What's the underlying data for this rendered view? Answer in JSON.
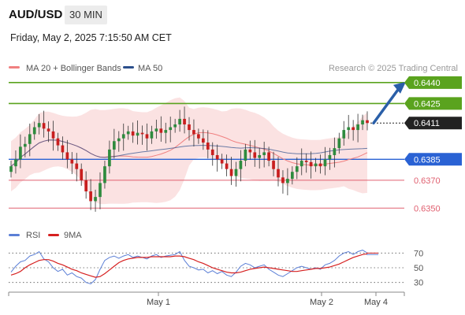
{
  "header": {
    "symbol": "AUD/USD",
    "timeframe": "30 MIN",
    "datetime": "Friday, May 2, 2025 7:15:50 AM CET"
  },
  "legend": {
    "ma20_label": "MA 20 + Bollinger Bands",
    "ma50_label": "MA 50",
    "ma20_color": "#f08080",
    "ma50_color": "#2c4f8c",
    "watermark": "Research © 2025 Trading Central"
  },
  "colors": {
    "up": "#2e8b3e",
    "down": "#c81e1e",
    "resistance": "#5aa31e",
    "support": "#e06070",
    "pivot": "#2a62d4",
    "current": "#222222",
    "arrow": "#2a5fa8",
    "band": "#f7caca",
    "rsi": "#5b7fd6",
    "rsi_ma": "#d62020"
  },
  "chart_data": [
    {
      "type": "candlestick",
      "pair": "AUD/USD",
      "ylim": [
        0.634,
        0.6445
      ],
      "levels": [
        {
          "value": "0.6440",
          "kind": "target"
        },
        {
          "value": "0.6425",
          "kind": "resistance"
        },
        {
          "value": "0.6411",
          "kind": "current"
        },
        {
          "value": "0.6385",
          "kind": "pivot"
        },
        {
          "value": "0.6370",
          "kind": "support"
        },
        {
          "value": "0.6350",
          "kind": "support"
        }
      ],
      "x_ticks": [
        "May 1",
        "May 2",
        "May 4"
      ],
      "close": [
        0.638,
        0.6385,
        0.6394,
        0.6396,
        0.6403,
        0.6408,
        0.6411,
        0.6407,
        0.6405,
        0.64,
        0.6395,
        0.639,
        0.6385,
        0.6382,
        0.6378,
        0.637,
        0.6362,
        0.6355,
        0.6358,
        0.6368,
        0.638,
        0.6392,
        0.6398,
        0.64,
        0.6403,
        0.6405,
        0.6402,
        0.6404,
        0.6403,
        0.64,
        0.6405,
        0.6407,
        0.6404,
        0.6406,
        0.6408,
        0.641,
        0.6414,
        0.641,
        0.6406,
        0.6403,
        0.64,
        0.6397,
        0.6392,
        0.6388,
        0.6385,
        0.6382,
        0.6378,
        0.6373,
        0.6378,
        0.6384,
        0.6392,
        0.639,
        0.6386,
        0.6388,
        0.639,
        0.6384,
        0.6378,
        0.6372,
        0.6368,
        0.6371,
        0.6376,
        0.638,
        0.6384,
        0.6383,
        0.638,
        0.6382,
        0.638,
        0.6385,
        0.6388,
        0.6393,
        0.64,
        0.6406,
        0.6408,
        0.6406,
        0.641,
        0.6413,
        0.6411
      ]
    },
    {
      "type": "line",
      "name": "RSI",
      "ma_name": "9MA",
      "yticks": [
        "70",
        "50",
        "30"
      ],
      "ylim": [
        20,
        80
      ],
      "rsi": [
        44,
        52,
        58,
        60,
        66,
        68,
        72,
        62,
        58,
        50,
        45,
        48,
        40,
        43,
        38,
        36,
        30,
        28,
        34,
        48,
        60,
        64,
        66,
        63,
        66,
        68,
        64,
        66,
        64,
        62,
        66,
        68,
        64,
        66,
        67,
        68,
        72,
        60,
        52,
        50,
        47,
        48,
        43,
        46,
        42,
        45,
        40,
        38,
        44,
        52,
        56,
        54,
        50,
        52,
        54,
        48,
        44,
        40,
        38,
        42,
        46,
        50,
        52,
        50,
        48,
        50,
        48,
        54,
        56,
        60,
        66,
        70,
        72,
        68,
        72,
        74,
        70
      ],
      "rsi_ma": [
        40,
        42,
        45,
        50,
        54,
        57,
        60,
        61,
        61,
        59,
        56,
        54,
        51,
        48,
        46,
        43,
        41,
        39,
        37,
        38,
        42,
        47,
        52,
        57,
        60,
        62,
        63,
        64,
        64,
        64,
        65,
        65,
        65,
        65,
        65,
        66,
        66,
        65,
        63,
        61,
        58,
        56,
        53,
        50,
        48,
        46,
        44,
        43,
        43,
        44,
        46,
        48,
        49,
        50,
        51,
        50,
        49,
        48,
        47,
        46,
        45,
        45,
        46,
        47,
        48,
        49,
        49,
        50,
        51,
        53,
        55,
        58,
        61,
        64,
        66,
        68,
        69
      ]
    }
  ]
}
